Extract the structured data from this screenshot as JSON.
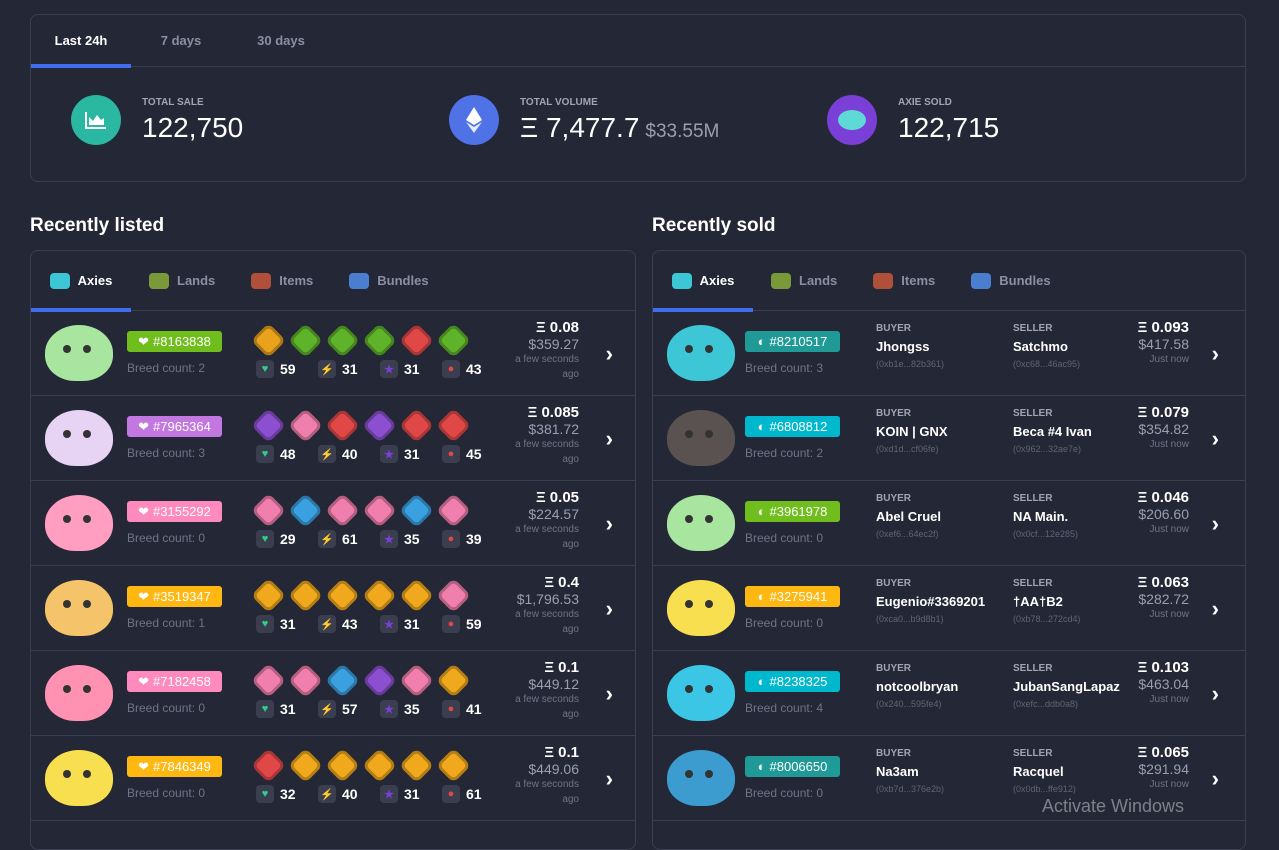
{
  "stats": {
    "tabs": [
      "Last 24h",
      "7 days",
      "30 days"
    ],
    "active_tab": 0,
    "total_sale": {
      "label": "TOTAL SALE",
      "value": "122,750",
      "icon": "area-chart-icon",
      "color": "#2bb8a3"
    },
    "total_volume": {
      "label": "TOTAL VOLUME",
      "value": "Ξ 7,477.7",
      "usd": "$33.55M",
      "icon": "ethereum-icon",
      "color": "#4f72e6"
    },
    "axie_sold": {
      "label": "AXIE SOLD",
      "value": "122,715",
      "icon": "axie-icon",
      "color": "#7a3fd6"
    }
  },
  "listed": {
    "title": "Recently listed",
    "tabs": [
      "Axies",
      "Lands",
      "Items",
      "Bundles"
    ],
    "rows": [
      {
        "id": "#8163838",
        "cls": "plant",
        "color": "#6fbe1e",
        "body": "#a8e6a0",
        "breed": "Breed count: 2",
        "parts": [
          "#e9a21c",
          "#5fb32a",
          "#5fb32a",
          "#5fb32a",
          "#e04848",
          "#5fb32a"
        ],
        "stats": [
          "59",
          "31",
          "31",
          "43"
        ],
        "eth": "Ξ 0.08",
        "usd": "$359.27",
        "time": "a few seconds ago"
      },
      {
        "id": "#7965364",
        "cls": "reptile",
        "color": "#c377e0",
        "body": "#e7d3f3",
        "breed": "Breed count: 3",
        "parts": [
          "#8c4fd0",
          "#f07fae",
          "#e04848",
          "#8c4fd0",
          "#e04848",
          "#e04848"
        ],
        "stats": [
          "48",
          "40",
          "31",
          "45"
        ],
        "eth": "Ξ 0.085",
        "usd": "$381.72",
        "time": "a few seconds ago"
      },
      {
        "id": "#3155292",
        "cls": "bird",
        "color": "#ff8abd",
        "body": "#ff9ec0",
        "breed": "Breed count: 0",
        "parts": [
          "#f07fae",
          "#3aa0e0",
          "#f07fae",
          "#f07fae",
          "#3aa0e0",
          "#f07fae"
        ],
        "stats": [
          "29",
          "61",
          "35",
          "39"
        ],
        "eth": "Ξ 0.05",
        "usd": "$224.57",
        "time": "a few seconds ago"
      },
      {
        "id": "#3519347",
        "cls": "beast",
        "color": "#ffb812",
        "body": "#f4c36a",
        "breed": "Breed count: 1",
        "parts": [
          "#f0a91c",
          "#f0a91c",
          "#f0a91c",
          "#f0a91c",
          "#f0a91c",
          "#f07fae"
        ],
        "stats": [
          "31",
          "43",
          "31",
          "59"
        ],
        "eth": "Ξ 0.4",
        "usd": "$1,796.53",
        "time": "a few seconds ago"
      },
      {
        "id": "#7182458",
        "cls": "bird",
        "color": "#ff8abd",
        "body": "#ff92b3",
        "breed": "Breed count: 0",
        "parts": [
          "#f07fae",
          "#f07fae",
          "#3aa0e0",
          "#8c4fd0",
          "#f07fae",
          "#f0a91c"
        ],
        "stats": [
          "31",
          "57",
          "35",
          "41"
        ],
        "eth": "Ξ 0.1",
        "usd": "$449.12",
        "time": "a few seconds ago"
      },
      {
        "id": "#7846349",
        "cls": "beast",
        "color": "#ffb812",
        "body": "#f7df50",
        "breed": "Breed count: 0",
        "parts": [
          "#e04848",
          "#f0a91c",
          "#f0a91c",
          "#f0a91c",
          "#f0a91c",
          "#f0a91c"
        ],
        "stats": [
          "32",
          "40",
          "31",
          "61"
        ],
        "eth": "Ξ 0.1",
        "usd": "$449.06",
        "time": "a few seconds ago"
      }
    ]
  },
  "sold": {
    "title": "Recently sold",
    "tabs": [
      "Axies",
      "Lands",
      "Items",
      "Bundles"
    ],
    "buyer_label": "BUYER",
    "seller_label": "SELLER",
    "rows": [
      {
        "id": "#8210517",
        "color": "#1f9a96",
        "body": "#3cc6d6",
        "breed": "Breed count: 3",
        "buyer": "Jhongss",
        "buyer_addr": "(0xb1e...82b361)",
        "seller": "Satchmo",
        "seller_addr": "(0xc68...46ac95)",
        "eth": "Ξ 0.093",
        "usd": "$417.58",
        "time": "Just now"
      },
      {
        "id": "#6808812",
        "color": "#00b8ce",
        "body": "#5a5250",
        "breed": "Breed count: 2",
        "buyer": "KOIN | GNX",
        "buyer_addr": "(0xd1d...cf06fe)",
        "seller": "Beca #4 Ivan",
        "seller_addr": "(0x962...32ae7e)",
        "eth": "Ξ 0.079",
        "usd": "$354.82",
        "time": "Just now"
      },
      {
        "id": "#3961978",
        "color": "#6fbe1e",
        "body": "#a8e6a0",
        "breed": "Breed count: 0",
        "buyer": "Abel Cruel",
        "buyer_addr": "(0xef6...64ec2f)",
        "seller": "NA Main.",
        "seller_addr": "(0x0cf...12e285)",
        "eth": "Ξ 0.046",
        "usd": "$206.60",
        "time": "Just now"
      },
      {
        "id": "#3275941",
        "color": "#ffb812",
        "body": "#f7df50",
        "breed": "Breed count: 0",
        "buyer": "Eugenio#3369201",
        "buyer_addr": "(0xca0...b9d8b1)",
        "seller": "†AA†B2",
        "seller_addr": "(0xb78...272cd4)",
        "eth": "Ξ 0.063",
        "usd": "$282.72",
        "time": "Just now"
      },
      {
        "id": "#8238325",
        "color": "#00b8ce",
        "body": "#3cc6e6",
        "breed": "Breed count: 4",
        "buyer": "notcoolbryan",
        "buyer_addr": "(0x240...595fe4)",
        "seller": "JubanSangLapaz",
        "seller_addr": "(0xefc...ddb0a8)",
        "eth": "Ξ 0.103",
        "usd": "$463.04",
        "time": "Just now"
      },
      {
        "id": "#8006650",
        "color": "#1f9a96",
        "body": "#3c9ccf",
        "breed": "Breed count: 0",
        "buyer": "Na3am",
        "buyer_addr": "(0xb7d...376e2b)",
        "seller": "Racquel",
        "seller_addr": "(0x0db...ffe912)",
        "eth": "Ξ 0.065",
        "usd": "$291.94",
        "time": "Just now"
      }
    ]
  },
  "watermark": "Activate Windows"
}
